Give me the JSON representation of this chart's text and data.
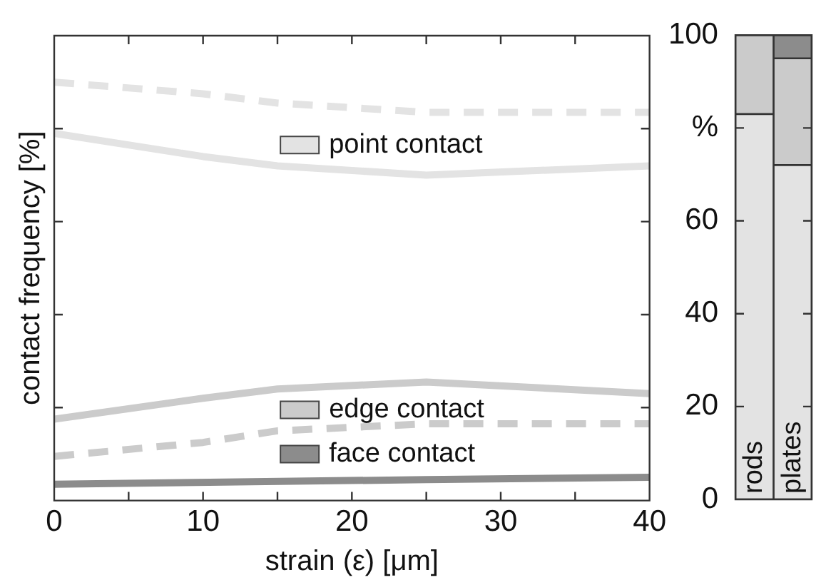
{
  "chart_data": [
    {
      "type": "line",
      "xlabel": "strain (ε) [μm]",
      "ylabel": "contact frequency [%]",
      "xlim": [
        0,
        40
      ],
      "ylim": [
        0,
        100
      ],
      "xticks": [
        0,
        {
          "value": 5,
          "label": null
        },
        10,
        {
          "value": 15,
          "label": null
        },
        20,
        {
          "value": 25,
          "label": null
        },
        30,
        {
          "value": 35,
          "label": null
        },
        40
      ],
      "yticks": [
        {
          "value": 0,
          "label": null
        },
        {
          "value": 20,
          "label": null
        },
        {
          "value": 40,
          "label": null
        },
        {
          "value": 60,
          "label": null
        },
        {
          "value": 80,
          "label": null
        },
        {
          "value": 100,
          "label": null
        }
      ],
      "tick_labels": "x",
      "grid": false,
      "legend": "right",
      "marker": "none",
      "series": [
        {
          "name": "point contact",
          "color": "#e3e3e3",
          "line_style": "solid",
          "x": [
            0,
            10,
            15,
            25,
            40
          ],
          "values": [
            79,
            74,
            72,
            70,
            72
          ]
        },
        {
          "color": "#e3e3e3",
          "line_style": "dashed",
          "x": [
            0,
            10,
            15,
            25,
            40
          ],
          "values": [
            90,
            87.5,
            85.5,
            83.5,
            83.5
          ]
        },
        {
          "name": "edge contact",
          "color": "#cbcbcb",
          "line_style": "solid",
          "x": [
            0,
            10,
            15,
            25,
            40
          ],
          "values": [
            17.5,
            22,
            24,
            25.5,
            23
          ]
        },
        {
          "color": "#cbcbcb",
          "line_style": "dashed",
          "x": [
            0,
            10,
            15,
            25,
            40
          ],
          "values": [
            9.5,
            12.5,
            15,
            16.5,
            16.5
          ]
        },
        {
          "name": "face contact",
          "color": "#8c8c8c",
          "line_style": "solid",
          "x": [
            0,
            25,
            40
          ],
          "values": [
            3.5,
            4.5,
            5
          ]
        }
      ]
    },
    {
      "type": "bar",
      "stacked": true,
      "categories": [
        "rods",
        "plates"
      ],
      "ylim": [
        0,
        100
      ],
      "yticks": [
        0,
        20,
        40,
        60,
        {
          "value": 80,
          "label": "%"
        },
        100
      ],
      "tick_labels": "y",
      "grid": false,
      "legend": false,
      "series": [
        {
          "color": "#e3e3e3",
          "values": [
            83,
            72
          ]
        },
        {
          "color": "#cbcbcb",
          "values": [
            17,
            23
          ]
        },
        {
          "color": "#8c8c8c",
          "values": [
            0,
            5
          ]
        }
      ]
    }
  ]
}
